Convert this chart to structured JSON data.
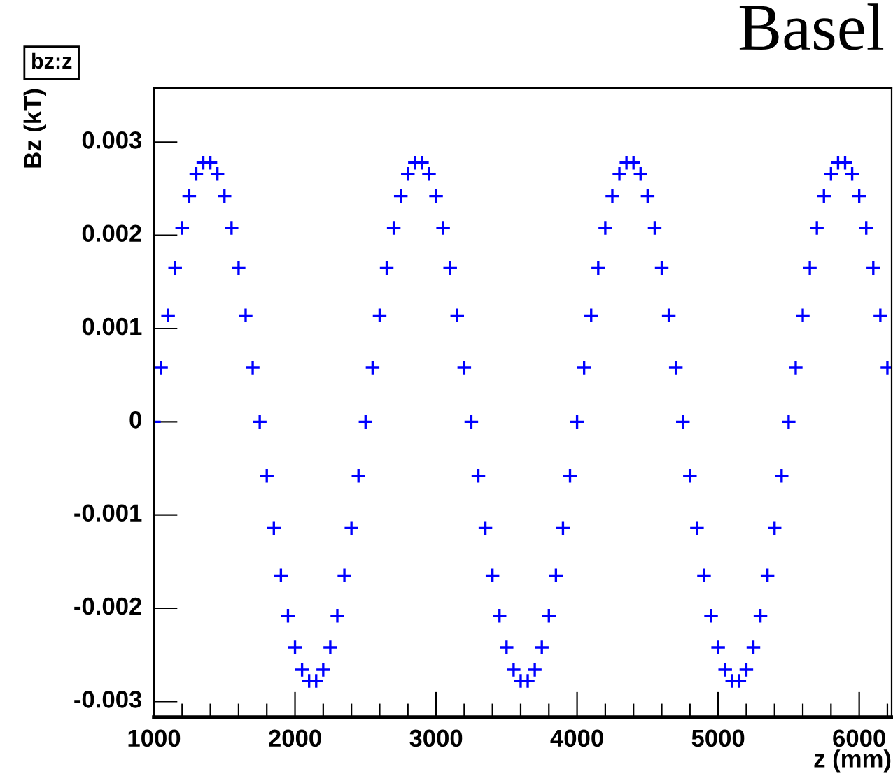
{
  "chart_data": {
    "type": "scatter",
    "title": "Basel",
    "xlabel": "z (mm)",
    "ylabel": "Bz (kT)",
    "annotations": [
      "bz:z"
    ],
    "marker": "cross",
    "grid": false,
    "legend": false,
    "xlim": [
      1000,
      6230
    ],
    "ylim": [
      -0.00317,
      0.00358
    ],
    "xticks": [
      1000,
      {
        "value": 1200,
        "label": null
      },
      {
        "value": 1400,
        "label": null
      },
      {
        "value": 1600,
        "label": null
      },
      {
        "value": 1800,
        "label": null
      },
      2000,
      {
        "value": 2200,
        "label": null
      },
      {
        "value": 2400,
        "label": null
      },
      {
        "value": 2600,
        "label": null
      },
      {
        "value": 2800,
        "label": null
      },
      3000,
      {
        "value": 3200,
        "label": null
      },
      {
        "value": 3400,
        "label": null
      },
      {
        "value": 3600,
        "label": null
      },
      {
        "value": 3800,
        "label": null
      },
      4000,
      {
        "value": 4200,
        "label": null
      },
      {
        "value": 4400,
        "label": null
      },
      {
        "value": 4600,
        "label": null
      },
      {
        "value": 4800,
        "label": null
      },
      5000,
      {
        "value": 5200,
        "label": null
      },
      {
        "value": 5400,
        "label": null
      },
      {
        "value": 5600,
        "label": null
      },
      {
        "value": 5800,
        "label": null
      },
      6000,
      {
        "value": 6200,
        "label": null
      }
    ],
    "yticks": [
      -0.003,
      -0.002,
      -0.001,
      0,
      0.001,
      0.002,
      0.003
    ],
    "series": [
      {
        "color": "#0000ff",
        "x": [
          1000,
          1050,
          1100,
          1150,
          1200,
          1250,
          1300,
          1350,
          1400,
          1450,
          1500,
          1550,
          1600,
          1650,
          1700,
          1750,
          1800,
          1850,
          1900,
          1950,
          2000,
          2050,
          2100,
          2150,
          2200,
          2250,
          2300,
          2350,
          2400,
          2450,
          2500,
          2550,
          2600,
          2650,
          2700,
          2750,
          2800,
          2850,
          2900,
          2950,
          3000,
          3050,
          3100,
          3150,
          3200,
          3250,
          3300,
          3350,
          3400,
          3450,
          3500,
          3550,
          3600,
          3650,
          3700,
          3750,
          3800,
          3850,
          3900,
          3950,
          4000,
          4050,
          4100,
          4150,
          4200,
          4250,
          4300,
          4350,
          4400,
          4450,
          4500,
          4550,
          4600,
          4650,
          4700,
          4750,
          4800,
          4850,
          4900,
          4950,
          5000,
          5050,
          5100,
          5150,
          5200,
          5250,
          5300,
          5350,
          5400,
          5450,
          5500,
          5550,
          5600,
          5650,
          5700,
          5750,
          5800,
          5850,
          5900,
          5950,
          6000,
          6050,
          6100,
          6150,
          6200
        ],
        "values": [
          0,
          0.00058,
          0.00114,
          0.00165,
          0.00208,
          0.00242,
          0.00266,
          0.00278,
          0.00278,
          0.00266,
          0.00242,
          0.00208,
          0.00165,
          0.00114,
          0.00058,
          0,
          -0.00058,
          -0.00114,
          -0.00165,
          -0.00208,
          -0.00242,
          -0.00266,
          -0.00278,
          -0.00278,
          -0.00266,
          -0.00242,
          -0.00208,
          -0.00165,
          -0.00114,
          -0.00058,
          0,
          0.00058,
          0.00114,
          0.00165,
          0.00208,
          0.00242,
          0.00266,
          0.00278,
          0.00278,
          0.00266,
          0.00242,
          0.00208,
          0.00165,
          0.00114,
          0.00058,
          0,
          -0.00058,
          -0.00114,
          -0.00165,
          -0.00208,
          -0.00242,
          -0.00266,
          -0.00278,
          -0.00278,
          -0.00266,
          -0.00242,
          -0.00208,
          -0.00165,
          -0.00114,
          -0.00058,
          0,
          0.00058,
          0.00114,
          0.00165,
          0.00208,
          0.00242,
          0.00266,
          0.00278,
          0.00278,
          0.00266,
          0.00242,
          0.00208,
          0.00165,
          0.00114,
          0.00058,
          0,
          -0.00058,
          -0.00114,
          -0.00165,
          -0.00208,
          -0.00242,
          -0.00266,
          -0.00278,
          -0.00278,
          -0.00266,
          -0.00242,
          -0.00208,
          -0.00165,
          -0.00114,
          -0.00058,
          0,
          0.00058,
          0.00114,
          0.00165,
          0.00208,
          0.00242,
          0.00266,
          0.00278,
          0.00278,
          0.00266,
          0.00242,
          0.00208,
          0.00165,
          0.00114,
          0.00058
        ]
      }
    ]
  }
}
